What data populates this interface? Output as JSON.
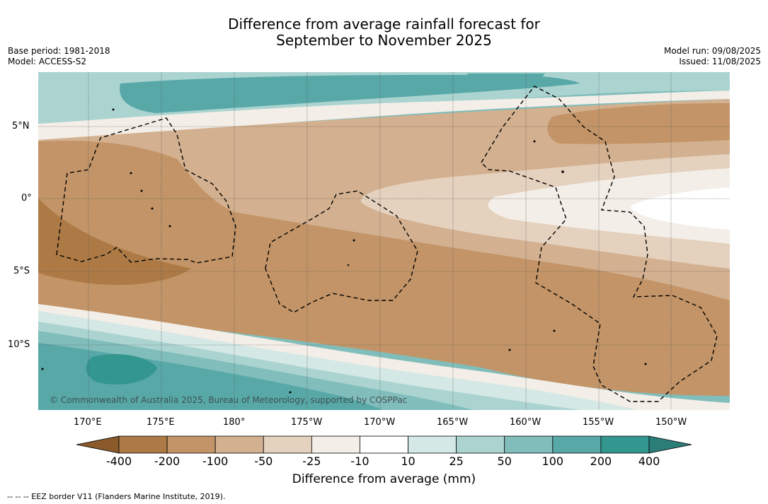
{
  "title_line1": "Difference from average rainfall forecast for",
  "title_line2": "September to November 2025",
  "base_period": "Base period: 1981-2018",
  "model": "Model: ACCESS-S2",
  "model_run": "Model run: 09/08/2025",
  "issued": "Issued: 11/08/2025",
  "copyright": "© Commonwealth of Australia 2025, Bureau of Meteorology, supported by COSPPac",
  "lat_labels": [
    "5°N",
    "0°",
    "5°S",
    "10°S"
  ],
  "lon_labels": [
    "170°E",
    "175°E",
    "180°",
    "175°W",
    "170°W",
    "165°W",
    "160°W",
    "155°W",
    "150°W"
  ],
  "colorbar": {
    "title": "Difference from average (mm)",
    "ticks": [
      "-400",
      "-200",
      "-100",
      "-50",
      "-25",
      "-10",
      "10",
      "25",
      "50",
      "100",
      "200",
      "400"
    ],
    "colors": [
      "#8a5a2b",
      "#ad7a45",
      "#c29467",
      "#d3b08f",
      "#e4d1be",
      "#f3eee7",
      "#ffffff",
      "#d4e8e5",
      "#abd4d1",
      "#80bdbb",
      "#58a8a8",
      "#33968f",
      "#2b7d78"
    ]
  },
  "footnote": "--  --  -- EEZ border V11 (Flanders Marine Institute, 2019)."
}
